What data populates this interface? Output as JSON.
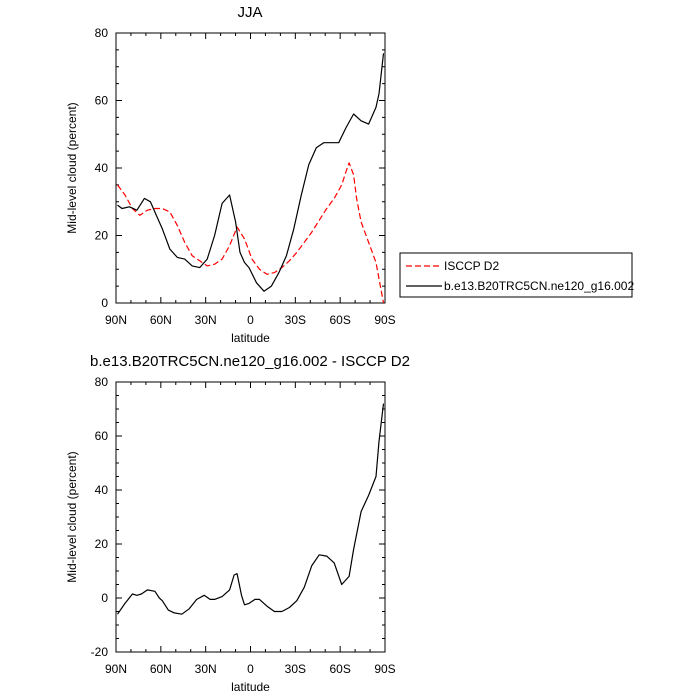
{
  "chart_data": [
    {
      "type": "line",
      "title": "JJA",
      "xlabel": "latitude",
      "ylabel": "Mid-level cloud (percent)",
      "xlim": [
        90,
        -90
      ],
      "ylim": [
        0,
        80
      ],
      "xticks": [
        90,
        60,
        30,
        0,
        -30,
        -60,
        -90
      ],
      "xticklabels": [
        "90N",
        "60N",
        "30N",
        "0",
        "30S",
        "60S",
        "90S"
      ],
      "yticks": [
        0,
        20,
        40,
        60,
        80
      ],
      "legend_position": "right",
      "series": [
        {
          "name": "ISCCP D2",
          "color": "#ff0000",
          "dashed": true,
          "x": [
            89,
            84,
            79,
            74,
            69,
            64,
            59,
            54,
            49,
            44,
            39,
            34,
            29,
            24,
            19,
            14,
            9,
            4,
            -1,
            -6,
            -11,
            -16,
            -21,
            -26,
            -31,
            -36,
            -41,
            -46,
            -51,
            -56,
            -61,
            -64,
            -66,
            -69,
            -71,
            -74,
            -79,
            -84,
            -89
          ],
          "y": [
            35,
            32,
            28,
            26,
            27.5,
            28,
            28,
            27,
            23,
            18,
            14,
            12.5,
            11,
            11.5,
            13,
            17,
            22.5,
            19,
            13,
            10,
            8.5,
            9,
            10.5,
            12.5,
            15,
            18,
            21,
            24.5,
            28,
            31,
            35,
            39,
            41.5,
            38,
            31,
            24,
            18,
            12,
            0
          ]
        },
        {
          "name": "b.e13.B20TRC5CN.ne120_g16.002",
          "color": "#000000",
          "dashed": false,
          "x": [
            89,
            86,
            81,
            76,
            71,
            67,
            63,
            59,
            54,
            49,
            44,
            39,
            34,
            29,
            24,
            19,
            14,
            10,
            7,
            4,
            1,
            -4,
            -9,
            -14,
            -19,
            -24,
            -29,
            -34,
            -39,
            -44,
            -49,
            -54,
            -59,
            -64,
            -69,
            -74,
            -79,
            -84,
            -86,
            -89
          ],
          "y": [
            29,
            28,
            28.5,
            27.5,
            31,
            30,
            26,
            22,
            16,
            13.5,
            13,
            11,
            10.5,
            13,
            20,
            29.5,
            32,
            24,
            15,
            12,
            10.5,
            6,
            3.5,
            5,
            9,
            14,
            22,
            32,
            41,
            46,
            47.5,
            47.5,
            47.5,
            52,
            56,
            54,
            53,
            58,
            62,
            74
          ]
        }
      ]
    },
    {
      "type": "line",
      "title": "b.e13.B20TRC5CN.ne120_g16.002 - ISCCP D2",
      "xlabel": "latitude",
      "ylabel": "Mid-level cloud (percent)",
      "xlim": [
        90,
        -90
      ],
      "ylim": [
        -20,
        80
      ],
      "xticks": [
        90,
        60,
        30,
        0,
        -30,
        -60,
        -90
      ],
      "xticklabels": [
        "90N",
        "60N",
        "30N",
        "0",
        "30S",
        "60S",
        "90S"
      ],
      "yticks": [
        -20,
        0,
        20,
        40,
        60,
        80
      ],
      "series": [
        {
          "color": "#000000",
          "dashed": false,
          "x": [
            89,
            84,
            79,
            76,
            73,
            69,
            64,
            61,
            59,
            55,
            51,
            46,
            41,
            36,
            31,
            27,
            24,
            19,
            14,
            11,
            9,
            6,
            4,
            1,
            -3,
            -6,
            -11,
            -16,
            -21,
            -26,
            -31,
            -36,
            -41,
            -46,
            -51,
            -56,
            -61,
            -66,
            -69,
            -74,
            -79,
            -84,
            -86,
            -89
          ],
          "y": [
            -6,
            -2,
            1.5,
            1,
            1.5,
            3,
            2.5,
            0,
            -1,
            -4.5,
            -5.5,
            -6,
            -4,
            -0.5,
            1,
            -0.5,
            -0.5,
            0.5,
            3,
            8.5,
            9,
            1,
            -2.5,
            -2,
            -0.5,
            -0.5,
            -3,
            -5,
            -5,
            -3.5,
            -1,
            4,
            12,
            16,
            15.5,
            13,
            5,
            8,
            18,
            32,
            38,
            45,
            58,
            72
          ]
        }
      ]
    }
  ]
}
